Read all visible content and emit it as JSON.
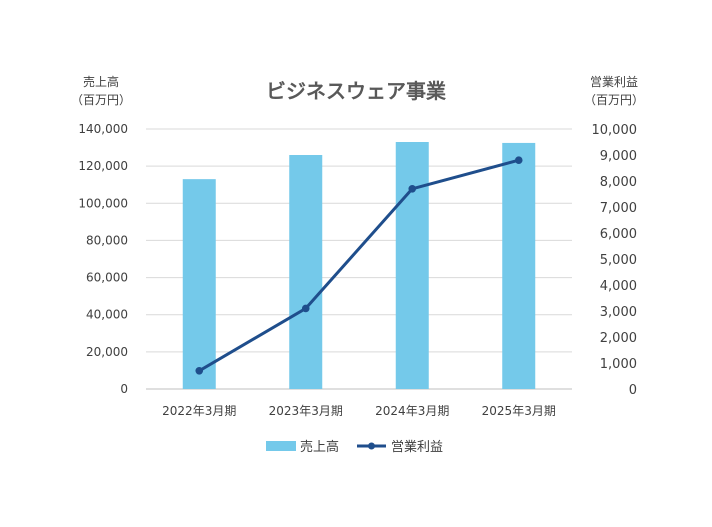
{
  "chart_data": {
    "type": "bar",
    "title": "ビジネスウェア事業",
    "categories": [
      "2022年3月期",
      "2023年3月期",
      "2024年3月期",
      "2025年3月期"
    ],
    "y_left": {
      "label_line1": "売上高",
      "label_line2": "（百万円）",
      "ylim": [
        0,
        140000
      ],
      "step": 20000
    },
    "y_right": {
      "label_line1": "営業利益",
      "label_line2": "（百万円）",
      "ylim": [
        0,
        10000
      ],
      "step": 1000
    },
    "series": [
      {
        "name": "売上高",
        "type": "bar",
        "axis": "left",
        "color": "#74C9EA",
        "values": [
          113000,
          126000,
          133000,
          132500
        ]
      },
      {
        "name": "営業利益",
        "type": "line",
        "axis": "right",
        "color": "#1F4E8C",
        "values": [
          700,
          3100,
          7700,
          8800
        ]
      }
    ],
    "grid": true,
    "legend": "bottom"
  }
}
